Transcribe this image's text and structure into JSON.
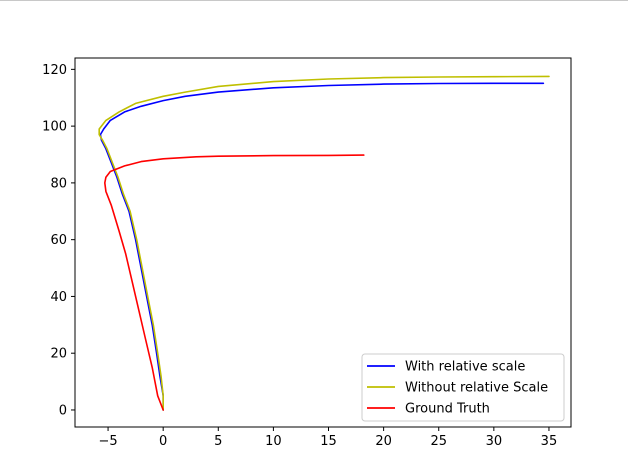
{
  "chart_data": {
    "type": "line",
    "title": "",
    "xlabel": "",
    "ylabel": "",
    "xlim": [
      -8,
      37
    ],
    "ylim": [
      -6,
      124
    ],
    "xticks": [
      -5,
      0,
      5,
      10,
      15,
      20,
      25,
      30,
      35
    ],
    "yticks": [
      0,
      20,
      40,
      60,
      80,
      100,
      120
    ],
    "grid": false,
    "legend_position": "lower-right",
    "series": [
      {
        "name": "With relative scale",
        "color": "#0000ff",
        "points": [
          [
            0,
            0
          ],
          [
            0,
            5
          ],
          [
            -0.3,
            12
          ],
          [
            -0.6,
            20
          ],
          [
            -1,
            30
          ],
          [
            -1.5,
            40
          ],
          [
            -2,
            50
          ],
          [
            -2.5,
            60
          ],
          [
            -3.1,
            70
          ],
          [
            -3.7,
            76
          ],
          [
            -4.2,
            82
          ],
          [
            -4.7,
            87
          ],
          [
            -5.2,
            92
          ],
          [
            -5.6,
            95
          ],
          [
            -5.7,
            97
          ],
          [
            -5.4,
            99
          ],
          [
            -4.8,
            102
          ],
          [
            -3.5,
            105
          ],
          [
            -2,
            107
          ],
          [
            0,
            109
          ],
          [
            2,
            110.5
          ],
          [
            5,
            112
          ],
          [
            10,
            113.5
          ],
          [
            15,
            114.3
          ],
          [
            20,
            114.8
          ],
          [
            25,
            115
          ],
          [
            30,
            115.1
          ],
          [
            34.5,
            115.1
          ]
        ]
      },
      {
        "name": "Without relative Scale",
        "color": "#bfbf00",
        "points": [
          [
            0,
            0
          ],
          [
            0,
            5
          ],
          [
            -0.2,
            12
          ],
          [
            -0.5,
            20
          ],
          [
            -0.9,
            30
          ],
          [
            -1.4,
            40
          ],
          [
            -1.9,
            50
          ],
          [
            -2.4,
            60
          ],
          [
            -3,
            70
          ],
          [
            -3.6,
            76
          ],
          [
            -4.1,
            82
          ],
          [
            -4.6,
            87
          ],
          [
            -5.1,
            92
          ],
          [
            -5.5,
            95
          ],
          [
            -5.8,
            97
          ],
          [
            -5.8,
            99
          ],
          [
            -5.2,
            102
          ],
          [
            -4,
            105
          ],
          [
            -2.5,
            108
          ],
          [
            0,
            110.5
          ],
          [
            2,
            112
          ],
          [
            5,
            114
          ],
          [
            10,
            115.7
          ],
          [
            15,
            116.6
          ],
          [
            20,
            117.1
          ],
          [
            25,
            117.3
          ],
          [
            30,
            117.4
          ],
          [
            35,
            117.5
          ]
        ]
      },
      {
        "name": "Ground Truth",
        "color": "#ff0000",
        "points": [
          [
            0,
            0
          ],
          [
            -0.5,
            5
          ],
          [
            -1,
            15
          ],
          [
            -1.6,
            25
          ],
          [
            -2.2,
            35
          ],
          [
            -2.8,
            45
          ],
          [
            -3.4,
            55
          ],
          [
            -4,
            63
          ],
          [
            -4.7,
            72
          ],
          [
            -5.2,
            77
          ],
          [
            -5.3,
            80
          ],
          [
            -5.2,
            82
          ],
          [
            -4.8,
            84
          ],
          [
            -3.5,
            86
          ],
          [
            -2,
            87.5
          ],
          [
            0,
            88.5
          ],
          [
            3,
            89.2
          ],
          [
            5,
            89.4
          ],
          [
            10,
            89.6
          ],
          [
            15,
            89.7
          ],
          [
            18.2,
            89.8
          ]
        ]
      }
    ]
  }
}
